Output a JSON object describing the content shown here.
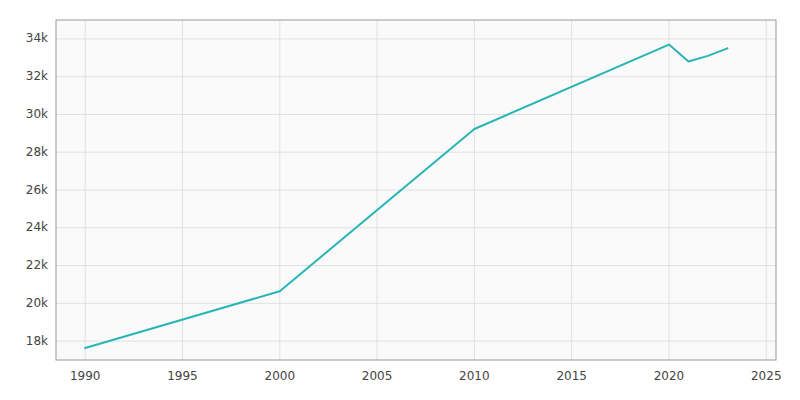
{
  "chart_data": {
    "type": "line",
    "x": [
      1990,
      2000,
      2010,
      2020,
      2021,
      2022,
      2023
    ],
    "values": [
      17635,
      20642,
      29230,
      33700,
      32800,
      33100,
      33500
    ],
    "color": "#2ab5b5",
    "xlim": [
      1988.5,
      2025.5
    ],
    "ylim": [
      17000,
      35000
    ],
    "xticks": [
      1990,
      1995,
      2000,
      2005,
      2010,
      2015,
      2020,
      2025
    ],
    "yticks": [
      {
        "value": 18000,
        "label": "18k"
      },
      {
        "value": 20000,
        "label": "20k"
      },
      {
        "value": 22000,
        "label": "22k"
      },
      {
        "value": 24000,
        "label": "24k"
      },
      {
        "value": 26000,
        "label": "26k"
      },
      {
        "value": 28000,
        "label": "28k"
      },
      {
        "value": 30000,
        "label": "30k"
      },
      {
        "value": 32000,
        "label": "32k"
      },
      {
        "value": 34000,
        "label": "34k"
      }
    ],
    "grid": true
  }
}
